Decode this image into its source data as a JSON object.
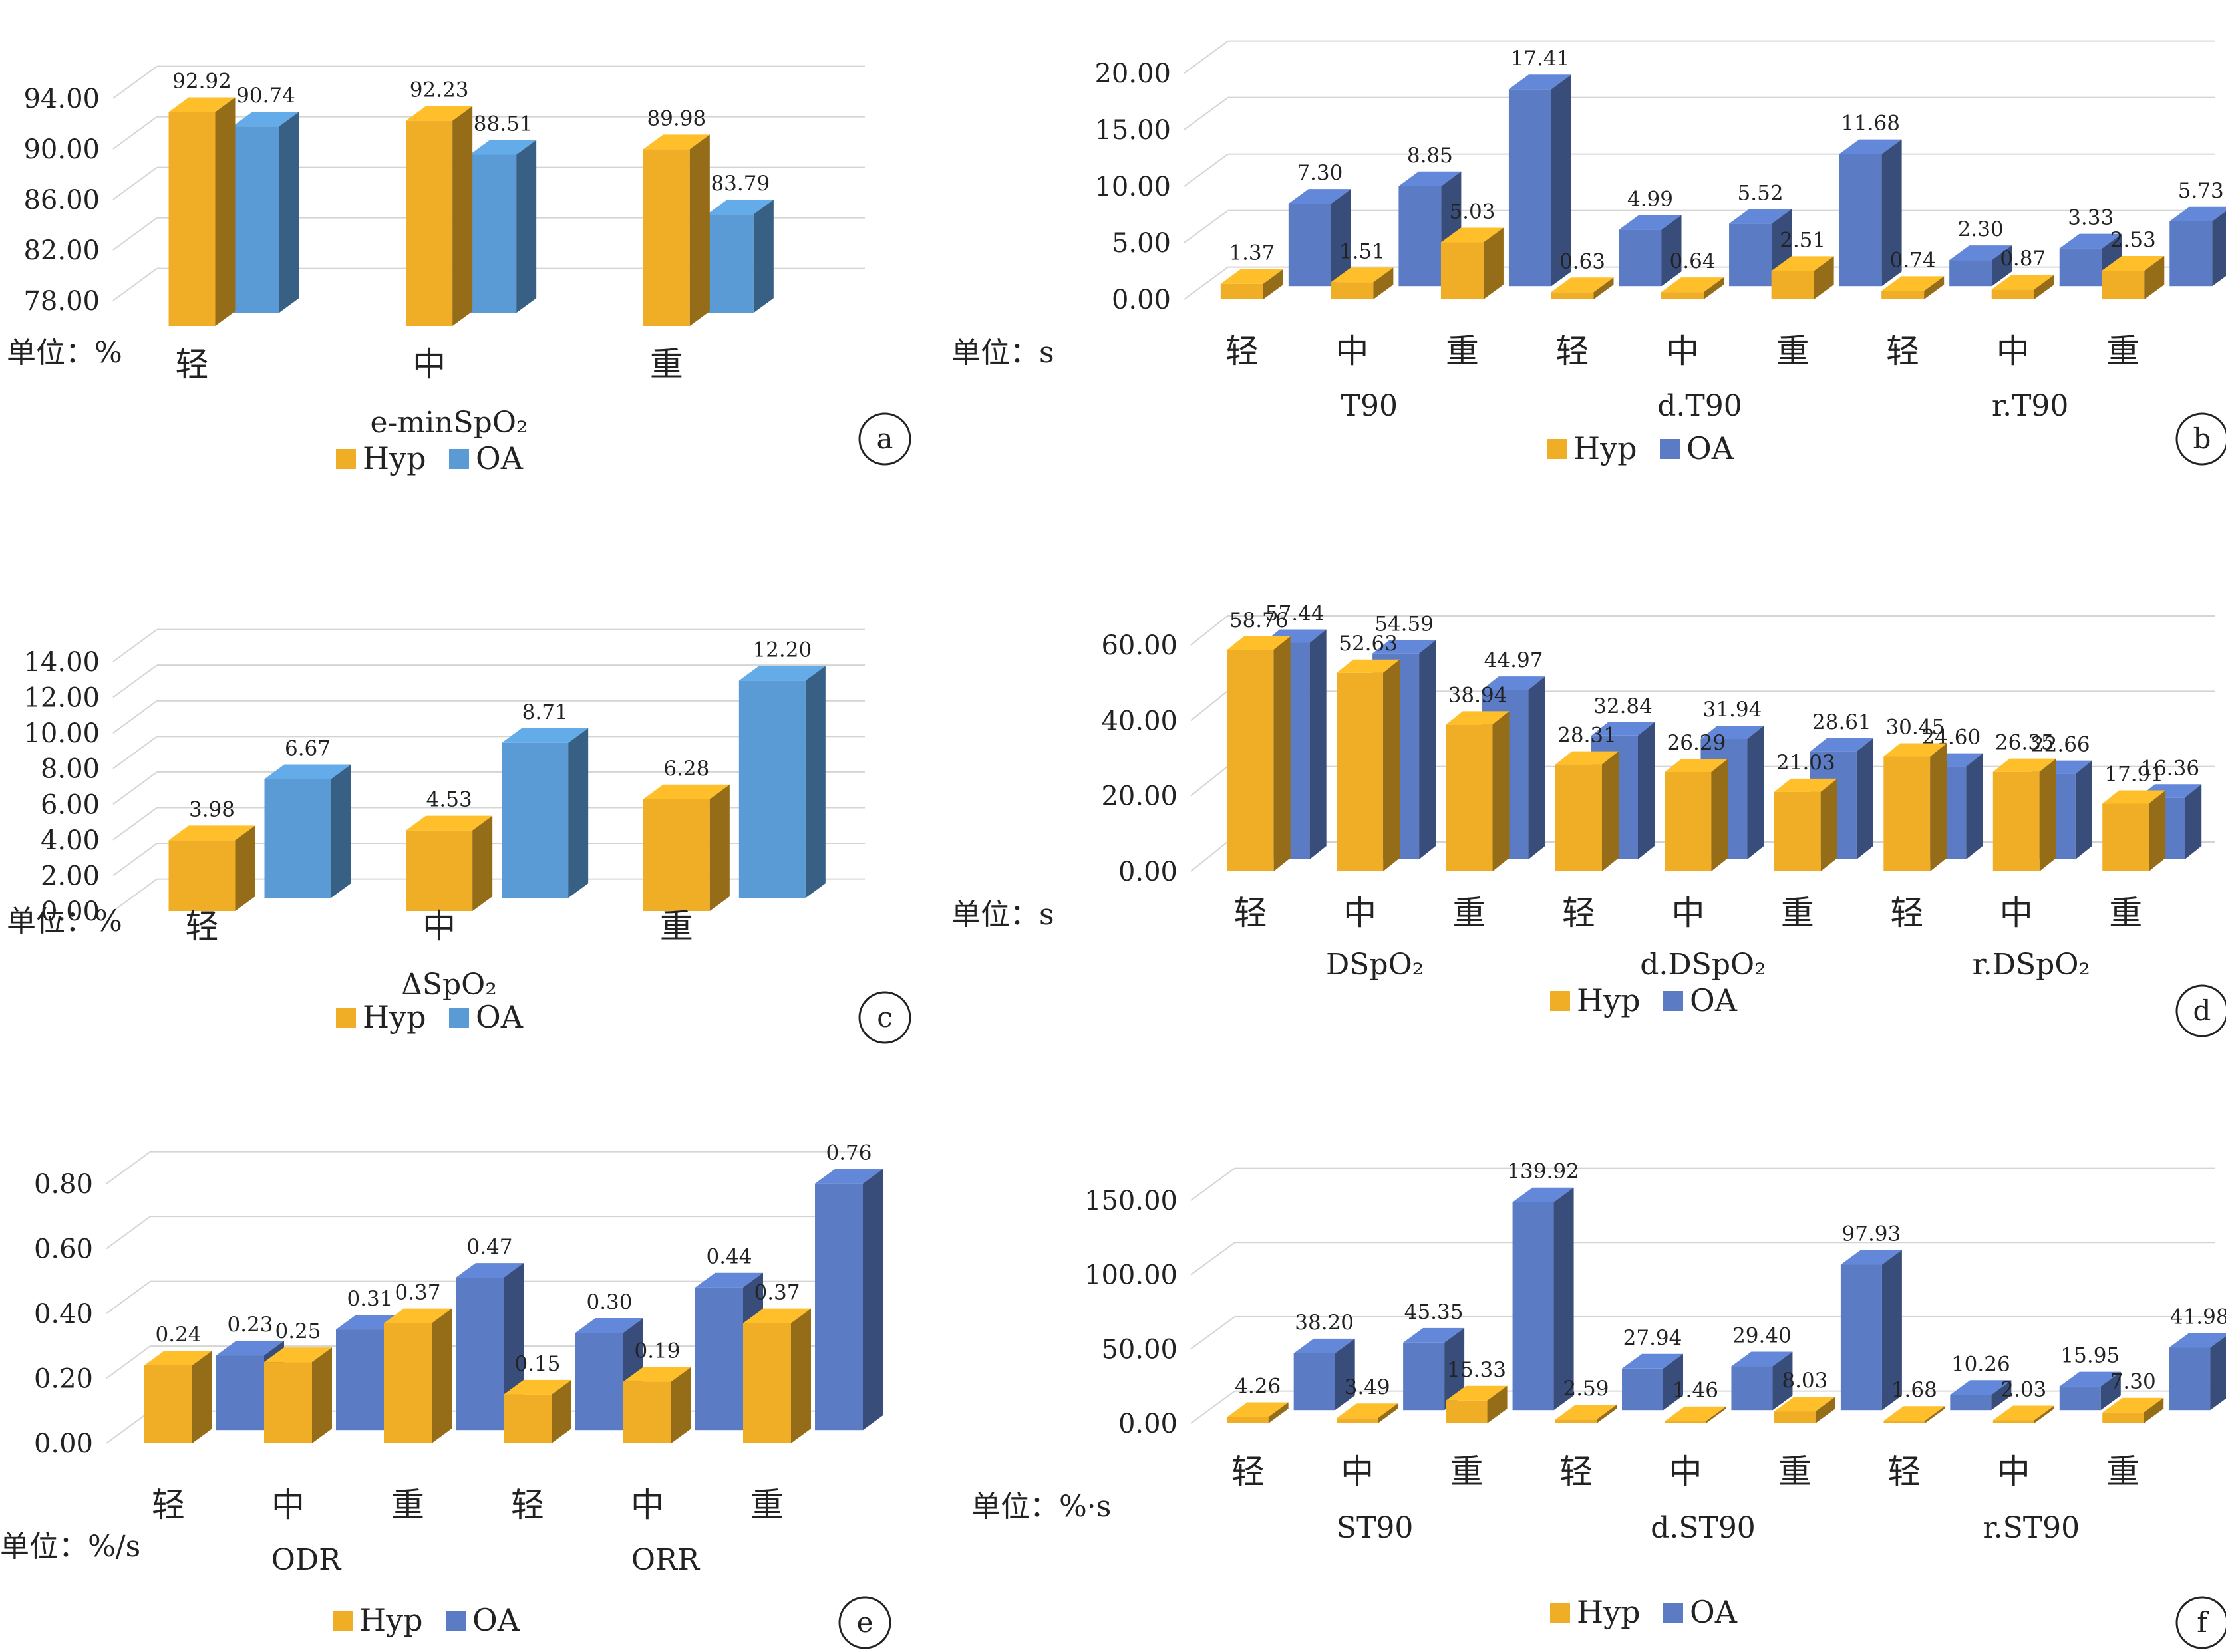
{
  "colors": {
    "hyp": "#F0AE27",
    "oa_a": "#5B9BD5",
    "oa_b": "#5B7CC5",
    "grid": "#D4D4D4"
  },
  "panels": [
    {
      "label": "a",
      "unit": "单位：%",
      "legend": [
        "Hyp",
        "OA"
      ],
      "chart_data": {
        "type": "bar",
        "title": "e-minSpO₂",
        "categories": [
          "轻",
          "中",
          "重"
        ],
        "groups": [],
        "yticks": [
          "78.00",
          "82.00",
          "86.00",
          "90.00",
          "94.00"
        ],
        "ylim": [
          76,
          96
        ],
        "series": [
          {
            "name": "Hyp",
            "values": [
              92.92,
              92.23,
              89.98
            ],
            "labels": [
              "92.92",
              "92.23",
              "89.98"
            ]
          },
          {
            "name": "OA",
            "values": [
              90.74,
              88.51,
              83.79
            ],
            "labels": [
              "90.74",
              "88.51",
              "83.79"
            ]
          }
        ]
      }
    },
    {
      "label": "b",
      "unit": "单位：s",
      "legend": [
        "Hyp",
        "OA"
      ],
      "chart_data": {
        "type": "bar",
        "title": "",
        "categories": [
          "轻",
          "中",
          "重",
          "轻",
          "中",
          "重",
          "轻",
          "中",
          "重"
        ],
        "groups": [
          "T90",
          "d.T90",
          "r.T90"
        ],
        "yticks": [
          "0.00",
          "5.00",
          "10.00",
          "15.00",
          "20.00"
        ],
        "ylim": [
          0,
          20
        ],
        "series": [
          {
            "name": "Hyp",
            "values": [
              1.37,
              1.51,
              5.03,
              0.63,
              0.64,
              2.51,
              0.74,
              0.87,
              2.53
            ],
            "labels": [
              "1.37",
              "1.51",
              "5.03",
              "0.63",
              "0.64",
              "2.51",
              "0.74",
              "0.87",
              "2.53"
            ]
          },
          {
            "name": "OA",
            "values": [
              7.3,
              8.85,
              17.41,
              4.99,
              5.52,
              11.68,
              2.3,
              3.33,
              5.73
            ],
            "labels": [
              "7.30",
              "8.85",
              "17.41",
              "4.99",
              "5.52",
              "11.68",
              "2.30",
              "3.33",
              "5.73"
            ]
          }
        ]
      }
    },
    {
      "label": "c",
      "unit": "单位：%",
      "legend": [
        "Hyp",
        "OA"
      ],
      "chart_data": {
        "type": "bar",
        "title": "ΔSpO₂",
        "categories": [
          "轻",
          "中",
          "重"
        ],
        "groups": [],
        "yticks": [
          "0.00",
          "2.00",
          "4.00",
          "6.00",
          "8.00",
          "10.00",
          "12.00",
          "14.00"
        ],
        "ylim": [
          0,
          14
        ],
        "series": [
          {
            "name": "Hyp",
            "values": [
              3.98,
              4.53,
              6.28
            ],
            "labels": [
              "3.98",
              "4.53",
              "6.28"
            ]
          },
          {
            "name": "OA",
            "values": [
              6.67,
              8.71,
              12.2
            ],
            "labels": [
              "6.67",
              "8.71",
              "12.20"
            ]
          }
        ]
      }
    },
    {
      "label": "d",
      "unit": "单位：s",
      "legend": [
        "Hyp",
        "OA"
      ],
      "chart_data": {
        "type": "bar",
        "title": "",
        "categories": [
          "轻",
          "中",
          "重",
          "轻",
          "中",
          "重",
          "轻",
          "中",
          "重"
        ],
        "groups": [
          "DSpO₂",
          "d.DSpO₂",
          "r.DSpO₂"
        ],
        "yticks": [
          "0.00",
          "20.00",
          "40.00",
          "60.00"
        ],
        "ylim": [
          0,
          60
        ],
        "series": [
          {
            "name": "Hyp",
            "values": [
              58.76,
              52.63,
              38.94,
              28.31,
              26.29,
              21.03,
              30.45,
              26.35,
              17.91
            ],
            "labels": [
              "58.76",
              "52.63",
              "38.94",
              "28.31",
              "26.29",
              "21.03",
              "30.45",
              "26.35",
              "17.91"
            ]
          },
          {
            "name": "OA",
            "values": [
              57.44,
              54.59,
              44.97,
              32.84,
              31.94,
              28.61,
              24.6,
              22.66,
              16.36
            ],
            "labels": [
              "57.44",
              "54.59",
              "44.97",
              "32.84",
              "31.94",
              "28.61",
              "24.60",
              "22.66",
              "16.36"
            ]
          }
        ]
      }
    },
    {
      "label": "e",
      "unit": "单位：%/s",
      "legend": [
        "Hyp",
        "OA"
      ],
      "chart_data": {
        "type": "bar",
        "title": "",
        "categories": [
          "轻",
          "中",
          "重",
          "轻",
          "中",
          "重"
        ],
        "groups": [
          "ODR",
          "ORR"
        ],
        "yticks": [
          "0.00",
          "0.20",
          "0.40",
          "0.60",
          "0.80"
        ],
        "ylim": [
          0,
          0.8
        ],
        "series": [
          {
            "name": "Hyp",
            "values": [
              0.24,
              0.25,
              0.37,
              0.15,
              0.19,
              0.37
            ],
            "labels": [
              "0.24",
              "0.25",
              "0.37",
              "0.15",
              "0.19",
              "0.37"
            ]
          },
          {
            "name": "OA",
            "values": [
              0.23,
              0.31,
              0.47,
              0.3,
              0.44,
              0.76
            ],
            "labels": [
              "0.23",
              "0.31",
              "0.47",
              "0.30",
              "0.44",
              "0.76"
            ]
          }
        ]
      }
    },
    {
      "label": "f",
      "unit": "单位：%·s",
      "legend": [
        "Hyp",
        "OA"
      ],
      "chart_data": {
        "type": "bar",
        "title": "",
        "categories": [
          "轻",
          "中",
          "重",
          "轻",
          "中",
          "重",
          "轻",
          "中",
          "重"
        ],
        "groups": [
          "ST90",
          "d.ST90",
          "r.ST90"
        ],
        "yticks": [
          "0.00",
          "50.00",
          "100.00",
          "150.00"
        ],
        "ylim": [
          0,
          150
        ],
        "series": [
          {
            "name": "Hyp",
            "values": [
              4.26,
              3.49,
              15.33,
              2.59,
              1.46,
              8.03,
              1.68,
              2.03,
              7.3
            ],
            "labels": [
              "4.26",
              "3.49",
              "15.33",
              "2.59",
              "1.46",
              "8.03",
              "1.68",
              "2.03",
              "7.30"
            ]
          },
          {
            "name": "OA",
            "values": [
              38.2,
              45.35,
              139.92,
              27.94,
              29.4,
              97.93,
              10.26,
              15.95,
              41.98
            ],
            "labels": [
              "38.20",
              "45.35",
              "139.92",
              "27.94",
              "29.40",
              "97.93",
              "10.26",
              "15.95",
              "41.98"
            ]
          }
        ]
      }
    }
  ]
}
